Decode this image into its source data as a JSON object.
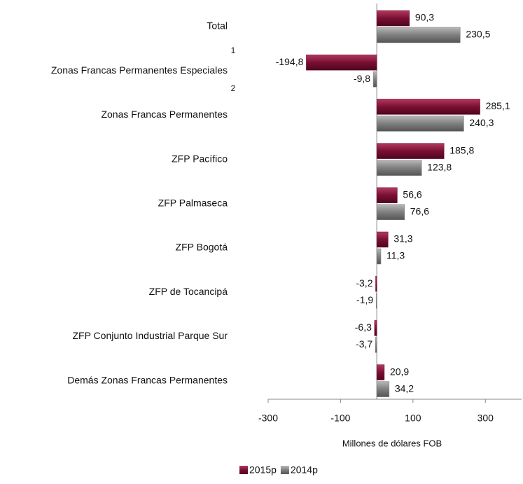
{
  "chart_data": {
    "type": "barh",
    "categories": [
      "Total",
      "Zonas Francas Permanentes Especiales",
      "Zonas Francas Permanentes",
      "ZFP Pacífico",
      "ZFP Palmaseca",
      "ZFP Bogotá",
      "ZFP de Tocancipá",
      "ZFP Conjunto Industrial Parque Sur",
      "Demás Zonas Francas Permanentes"
    ],
    "annotations": [
      "1",
      "2"
    ],
    "series": [
      {
        "name": "2015p",
        "color": "#7a0f33",
        "values": [
          90.3,
          -194.8,
          285.1,
          185.8,
          56.6,
          31.3,
          -3.2,
          -6.3,
          20.9
        ],
        "value_labels": [
          "90,3",
          "-194,8",
          "285,1",
          "185,8",
          "56,6",
          "31,3",
          "-3,2",
          "-6,3",
          "20,9"
        ]
      },
      {
        "name": "2014p",
        "color": "#7f7f7f",
        "values": [
          230.5,
          -9.8,
          240.3,
          123.8,
          76.6,
          11.3,
          -1.9,
          -3.7,
          34.2
        ],
        "value_labels": [
          "230,5",
          "-9,8",
          "240,3",
          "123,8",
          "76,6",
          "11,3",
          "-1,9",
          "-3,7",
          "34,2"
        ]
      }
    ],
    "x_label": "Millones de dólares FOB",
    "xlim": [
      -300,
      400
    ],
    "xticks": [
      -300,
      -100,
      100,
      300
    ],
    "legend": "bottom"
  }
}
